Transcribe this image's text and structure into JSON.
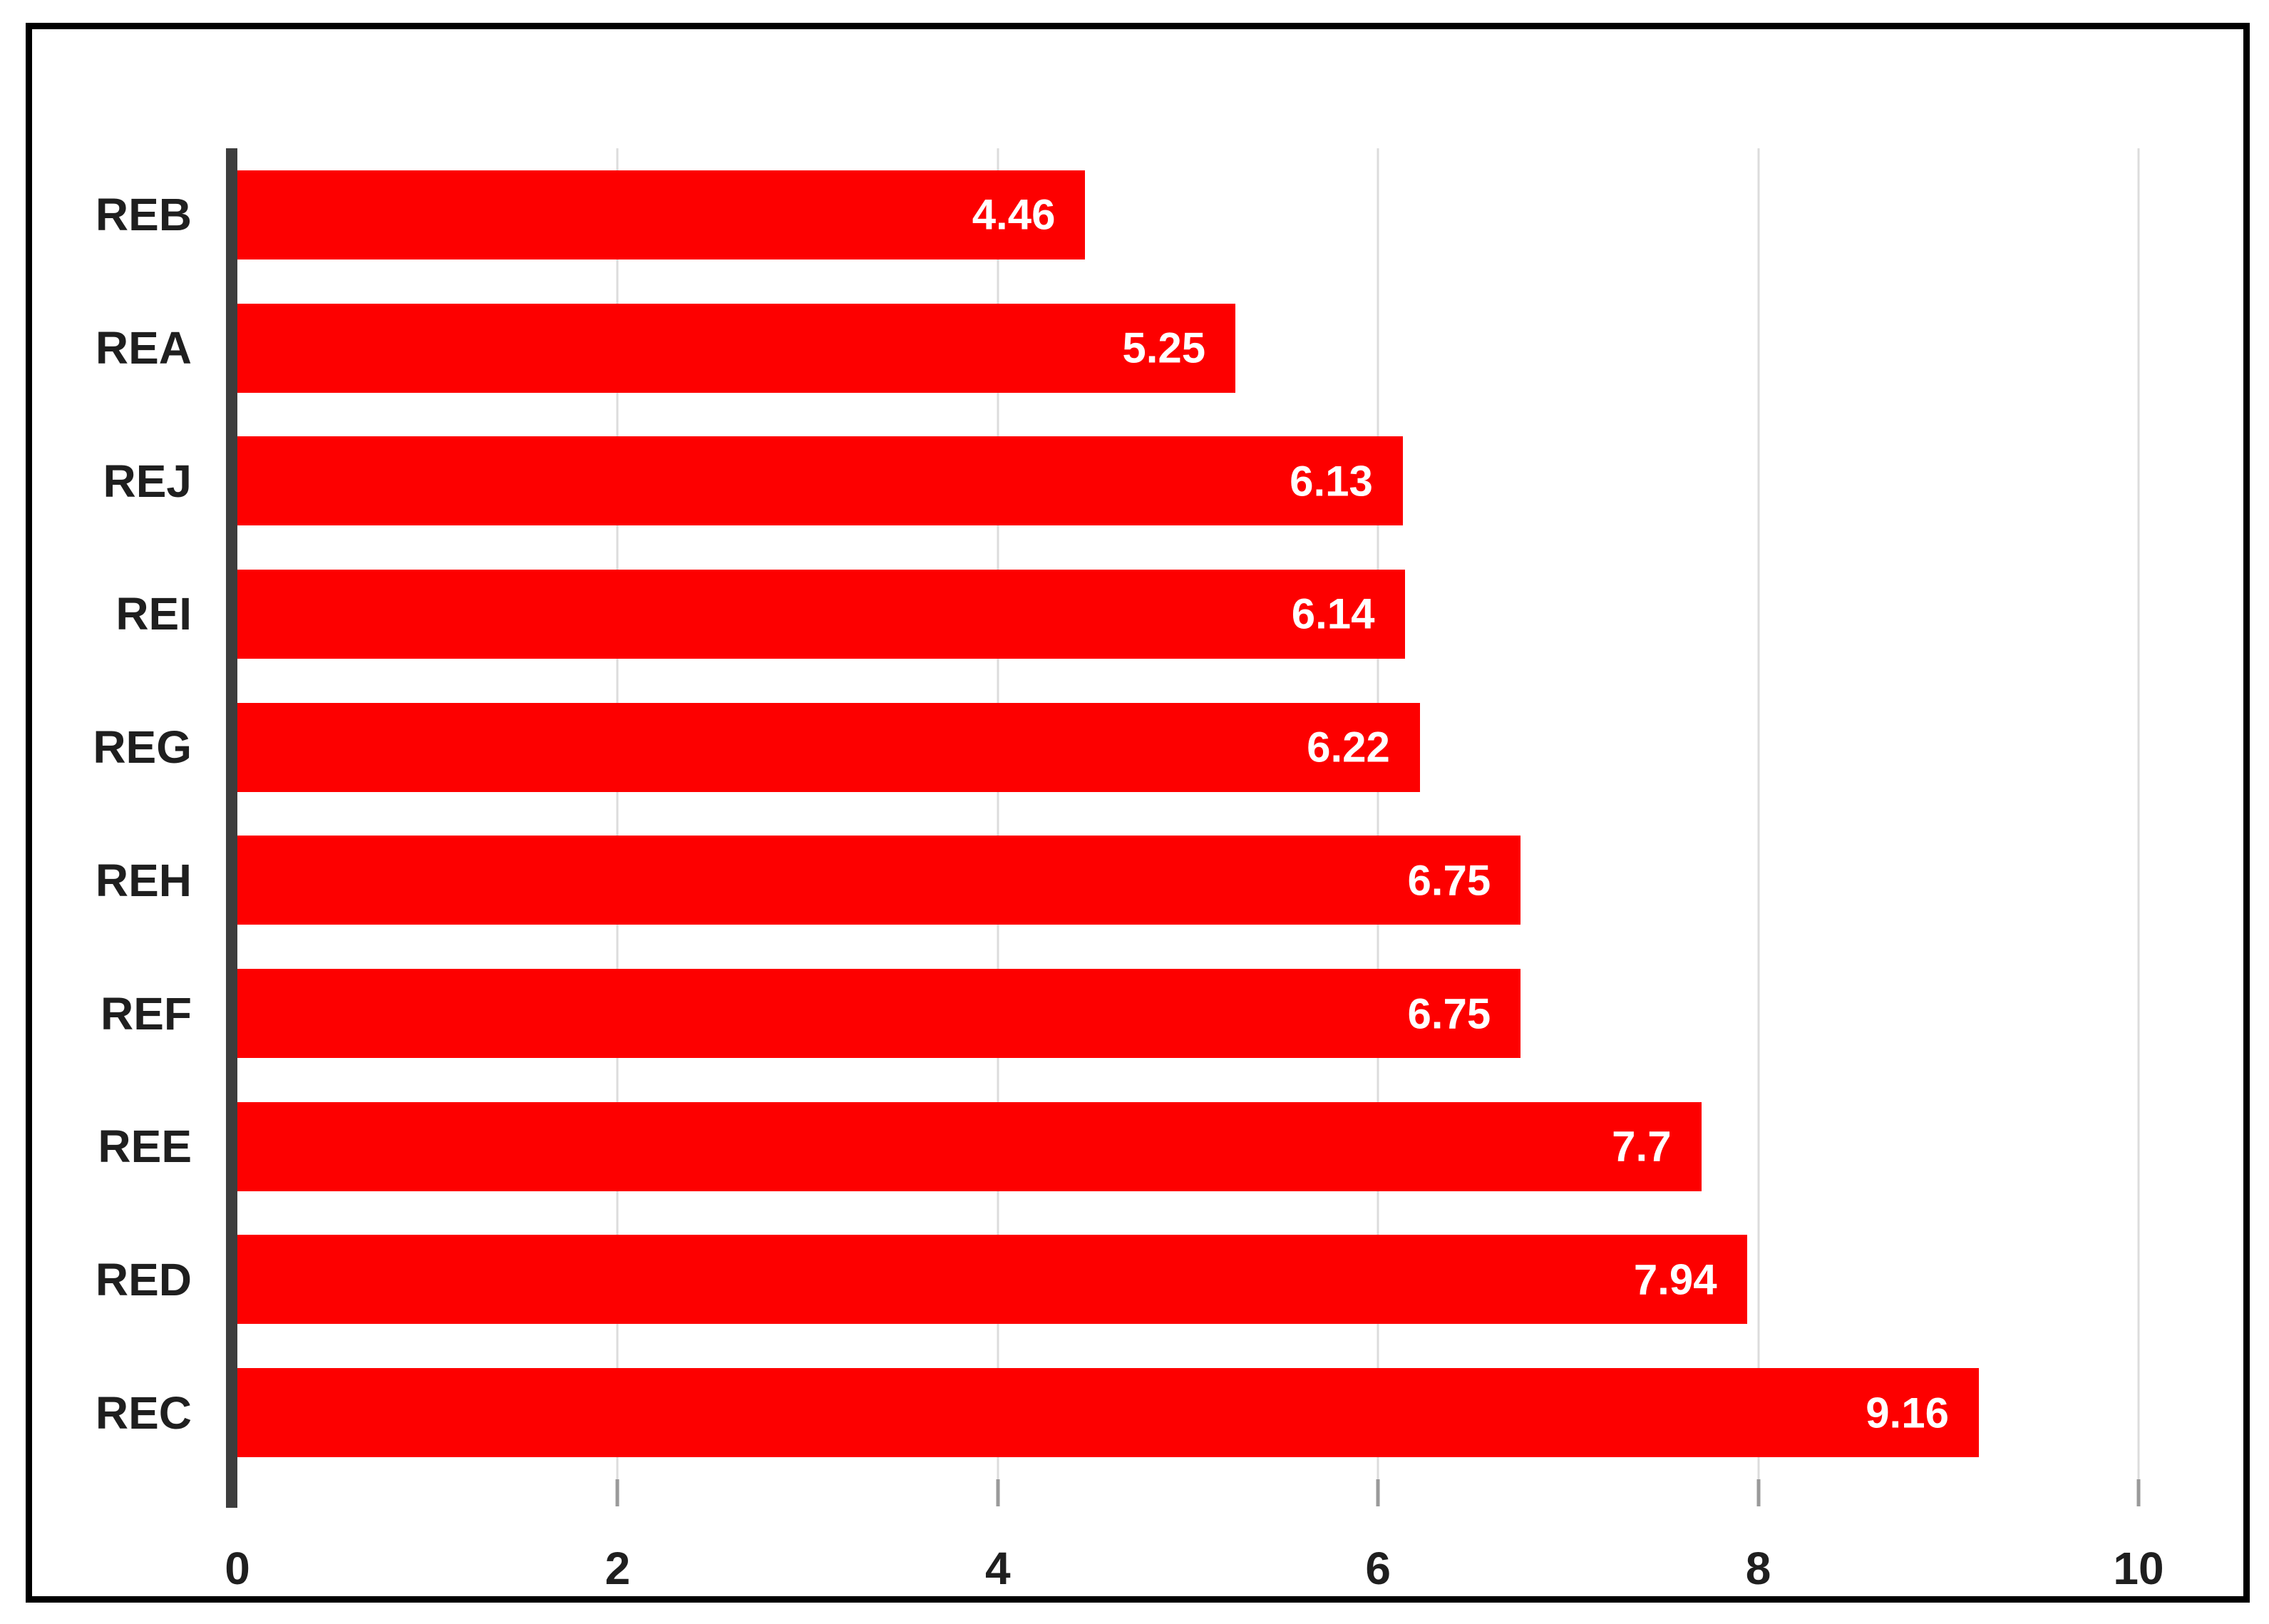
{
  "chart_data": {
    "type": "bar",
    "orientation": "horizontal",
    "categories": [
      "REB",
      "REA",
      "REJ",
      "REI",
      "REG",
      "REH",
      "REF",
      "REE",
      "RED",
      "REC"
    ],
    "values": [
      4.46,
      5.25,
      6.13,
      6.14,
      6.22,
      6.75,
      6.75,
      7.7,
      7.94,
      9.16
    ],
    "value_labels": [
      "4.46",
      "5.25",
      "6.13",
      "6.14",
      "6.22",
      "6.75",
      "6.75",
      "7.7",
      "7.94",
      "9.16"
    ],
    "xlim": [
      0,
      10
    ],
    "x_ticks": [
      "0",
      "2",
      "4",
      "6",
      "8",
      "10"
    ],
    "x_tick_values": [
      0,
      2,
      4,
      6,
      8,
      10
    ],
    "grid": true,
    "legend": false,
    "colors": {
      "bar": "#fd0000",
      "value_label": "#ffffff",
      "axis_line": "#3d3d3d",
      "gridline": "#dcdcdc",
      "tick": "#9a9a9a",
      "label_text": "#1f1f1f",
      "border": "#000000",
      "background": "#ffffff"
    }
  }
}
